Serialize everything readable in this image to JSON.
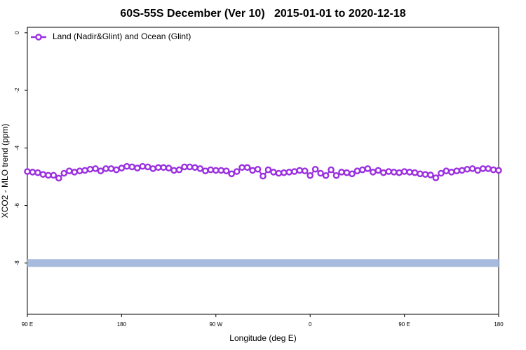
{
  "chart_data": {
    "type": "line",
    "title": "60S-55S December (Ver 10)   2015-01-01 to 2020-12-18",
    "xlabel": "Longitude (deg E)",
    "ylabel": "XCO2 - MLO trend (ppm)",
    "x": [
      90,
      95,
      100,
      105,
      110,
      115,
      120,
      125,
      130,
      135,
      140,
      145,
      150,
      155,
      160,
      165,
      170,
      175,
      180,
      185,
      190,
      195,
      200,
      205,
      210,
      215,
      220,
      225,
      230,
      235,
      240,
      245,
      250,
      255,
      260,
      265,
      270,
      275,
      280,
      285,
      290,
      295,
      300,
      305,
      310,
      315,
      320,
      325,
      330,
      335,
      340,
      345,
      350,
      355,
      360,
      365,
      370,
      375,
      380,
      385,
      390,
      395,
      400,
      405,
      410,
      415,
      420,
      425,
      430,
      435,
      440,
      445,
      450,
      455,
      460,
      465,
      470,
      475,
      480,
      485,
      490,
      495,
      500,
      505,
      510,
      515,
      520,
      525,
      530,
      535,
      540
    ],
    "series": [
      {
        "name": "Land (Nadir&Glint) and Ocean (Glint)",
        "color": "#9b30e0",
        "values": [
          -4.82,
          -4.84,
          -4.86,
          -4.92,
          -4.95,
          -4.95,
          -5.05,
          -4.88,
          -4.8,
          -4.84,
          -4.8,
          -4.78,
          -4.74,
          -4.72,
          -4.8,
          -4.72,
          -4.72,
          -4.76,
          -4.7,
          -4.64,
          -4.66,
          -4.7,
          -4.64,
          -4.66,
          -4.72,
          -4.68,
          -4.68,
          -4.7,
          -4.78,
          -4.76,
          -4.66,
          -4.66,
          -4.68,
          -4.72,
          -4.8,
          -4.76,
          -4.78,
          -4.78,
          -4.8,
          -4.9,
          -4.82,
          -4.68,
          -4.68,
          -4.78,
          -4.74,
          -4.98,
          -4.76,
          -4.84,
          -4.88,
          -4.86,
          -4.84,
          -4.82,
          -4.78,
          -4.8,
          -4.96,
          -4.74,
          -4.88,
          -4.96,
          -4.76,
          -4.96,
          -4.84,
          -4.86,
          -4.9,
          -4.8,
          -4.76,
          -4.72,
          -4.84,
          -4.78,
          -4.86,
          -4.82,
          -4.84,
          -4.86,
          -4.82,
          -4.84,
          -4.86,
          -4.9,
          -4.92,
          -4.94,
          -5.04,
          -4.88,
          -4.8,
          -4.84,
          -4.8,
          -4.78,
          -4.74,
          -4.72,
          -4.78,
          -4.72,
          -4.72,
          -4.76,
          -4.78
        ]
      },
      {
        "color": "#a7bbdf",
        "values": [
          -8,
          -8,
          -8,
          -8,
          -8,
          -8,
          -8,
          -8,
          -8,
          -8,
          -8,
          -8,
          -8,
          -8,
          -8,
          -8,
          -8,
          -8,
          -8,
          -8,
          -8,
          -8,
          -8,
          -8,
          -8,
          -8,
          -8,
          -8,
          -8,
          -8,
          -8,
          -8,
          -8,
          -8,
          -8,
          -8,
          -8,
          -8,
          -8,
          -8,
          -8,
          -8,
          -8,
          -8,
          -8,
          -8,
          -8,
          -8,
          -8,
          -8,
          -8,
          -8,
          -8,
          -8,
          -8,
          -8,
          -8,
          -8,
          -8,
          -8,
          -8,
          -8,
          -8,
          -8,
          -8,
          -8,
          -8,
          -8,
          -8,
          -8,
          -8,
          -8,
          -8,
          -8,
          -8,
          -8,
          -8,
          -8,
          -8,
          -8,
          -8,
          -8,
          -8,
          -8,
          -8,
          -8,
          -8,
          -8,
          -8,
          -8,
          -8
        ]
      }
    ],
    "xlim": [
      90,
      540
    ],
    "xticks": [
      {
        "value": 90,
        "label": "90 E"
      },
      180,
      {
        "value": 270,
        "label": "90 W"
      },
      {
        "value": 360,
        "label": "0"
      },
      {
        "value": 450,
        "label": "90 E"
      },
      {
        "value": 540,
        "label": "180"
      }
    ],
    "ylim": [
      -9.78,
      0.19
    ],
    "yticks": [
      0,
      -2,
      -4,
      -6,
      -8
    ],
    "legend": "top-left"
  }
}
